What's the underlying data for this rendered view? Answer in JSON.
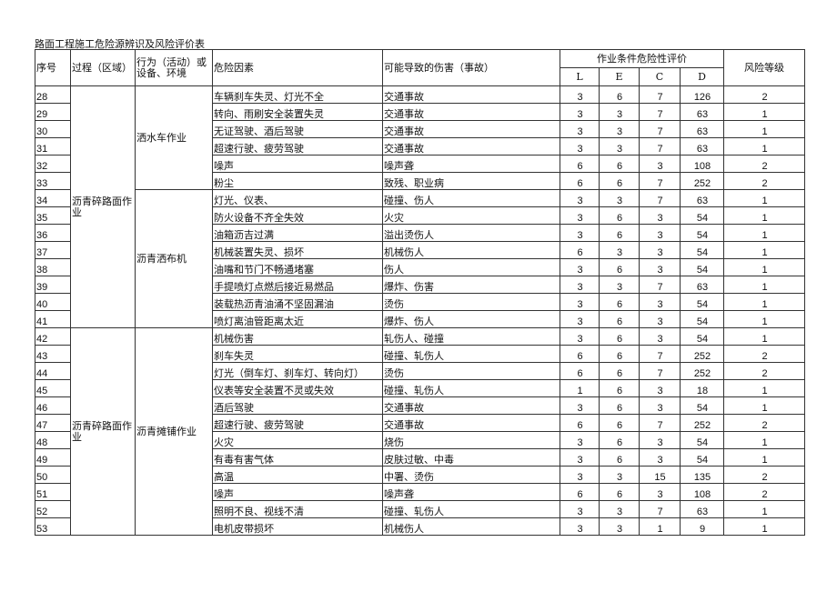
{
  "title": "路面工程施工危险源辨识及风险评价表",
  "headers": {
    "no": "序号",
    "process": "过程（区域）",
    "activity": "行为（活动）或设备、环境",
    "hazard": "危险因素",
    "harm": "可能导致的伤害（事故）",
    "evaluation": "作业条件危险性评价",
    "L": "L",
    "E": "E",
    "C": "C",
    "D": "D",
    "level": "风险等级"
  },
  "groups": [
    {
      "process": "沥青碎路面作业",
      "span": 14
    },
    {
      "process": "沥青碎路面作业",
      "span": 12
    }
  ],
  "activities": [
    {
      "label": "洒水车作业",
      "span": 6
    },
    {
      "label": "沥青洒布机",
      "span": 8
    },
    {
      "label": "沥青摊铺作业",
      "span": 12
    }
  ],
  "rows": [
    {
      "no": "28",
      "hazard": "车辆刹车失灵、灯光不全",
      "harm": "交通事故",
      "L": "3",
      "E": "6",
      "C": "7",
      "D": "126",
      "level": "2"
    },
    {
      "no": "29",
      "hazard": "转向、雨刷安全装置失灵",
      "harm": "交通事故",
      "L": "3",
      "E": "3",
      "C": "7",
      "D": "63",
      "level": "1"
    },
    {
      "no": "30",
      "hazard": "无证驾驶、酒后驾驶",
      "harm": "交通事故",
      "L": "3",
      "E": "3",
      "C": "7",
      "D": "63",
      "level": "1"
    },
    {
      "no": "31",
      "hazard": "超速行驶、疲劳驾驶",
      "harm": "交通事故",
      "L": "3",
      "E": "3",
      "C": "7",
      "D": "63",
      "level": "1"
    },
    {
      "no": "32",
      "hazard": "噪声",
      "harm": "噪声聋",
      "L": "6",
      "E": "6",
      "C": "3",
      "D": "108",
      "level": "2"
    },
    {
      "no": "33",
      "hazard": "粉尘",
      "harm": "致残、职业病",
      "L": "6",
      "E": "6",
      "C": "7",
      "D": "252",
      "level": "2"
    },
    {
      "no": "34",
      "hazard": "灯光、仪表、",
      "harm": "碰撞、伤人",
      "L": "3",
      "E": "3",
      "C": "7",
      "D": "63",
      "level": "1"
    },
    {
      "no": "35",
      "hazard": "防火设备不齐全失效",
      "harm": "火灾",
      "L": "3",
      "E": "6",
      "C": "3",
      "D": "54",
      "level": "1"
    },
    {
      "no": "36",
      "hazard": "油箱沥吉过满",
      "harm": "溢出烫伤人",
      "L": "3",
      "E": "6",
      "C": "3",
      "D": "54",
      "level": "1"
    },
    {
      "no": "37",
      "hazard": "机械装置失灵、损坏",
      "harm": "机械伤人",
      "L": "6",
      "E": "3",
      "C": "3",
      "D": "54",
      "level": "1"
    },
    {
      "no": "38",
      "hazard": "油嘴和节门不畅通堵塞",
      "harm": "伤人",
      "L": "3",
      "E": "6",
      "C": "3",
      "D": "54",
      "level": "1"
    },
    {
      "no": "39",
      "hazard": "手提喷灯点燃后接近易燃品",
      "harm": "爆炸、伤害",
      "L": "3",
      "E": "3",
      "C": "7",
      "D": "63",
      "level": "1"
    },
    {
      "no": "40",
      "hazard": "装载热沥青油涌不坚固漏油",
      "harm": "烫伤",
      "L": "3",
      "E": "6",
      "C": "3",
      "D": "54",
      "level": "1"
    },
    {
      "no": "41",
      "hazard": "喷灯离油管距离太近",
      "harm": "爆炸、伤人",
      "L": "3",
      "E": "6",
      "C": "3",
      "D": "54",
      "level": "1"
    },
    {
      "no": "42",
      "hazard": "机械伤害",
      "harm": "轧伤人、碰撞",
      "L": "3",
      "E": "6",
      "C": "3",
      "D": "54",
      "level": "1"
    },
    {
      "no": "43",
      "hazard": "刹车失灵",
      "harm": "碰撞、轧伤人",
      "L": "6",
      "E": "6",
      "C": "7",
      "D": "252",
      "level": "2"
    },
    {
      "no": "44",
      "hazard": "灯光（倒车灯、刹车灯、转向灯）",
      "harm": "烫伤",
      "L": "6",
      "E": "6",
      "C": "7",
      "D": "252",
      "level": "2"
    },
    {
      "no": "45",
      "hazard": "仪表等安全装置不灵或失效",
      "harm": "碰撞、轧伤人",
      "L": "1",
      "E": "6",
      "C": "3",
      "D": "18",
      "level": "1"
    },
    {
      "no": "46",
      "hazard": "酒后驾驶",
      "harm": "交通事故",
      "L": "3",
      "E": "6",
      "C": "3",
      "D": "54",
      "level": "1"
    },
    {
      "no": "47",
      "hazard": "超速行驶、疲劳驾驶",
      "harm": "交通事故",
      "L": "6",
      "E": "6",
      "C": "7",
      "D": "252",
      "level": "2"
    },
    {
      "no": "48",
      "hazard": "火灾",
      "harm": "烧伤",
      "L": "3",
      "E": "6",
      "C": "3",
      "D": "54",
      "level": "1"
    },
    {
      "no": "49",
      "hazard": "有毒有害气体",
      "harm": "皮肤过敏、中毒",
      "L": "3",
      "E": "6",
      "C": "3",
      "D": "54",
      "level": "1"
    },
    {
      "no": "50",
      "hazard": "高温",
      "harm": "中署、烫伤",
      "L": "3",
      "E": "3",
      "C": "15",
      "D": "135",
      "level": "2"
    },
    {
      "no": "51",
      "hazard": "噪声",
      "harm": "噪声聋",
      "L": "6",
      "E": "6",
      "C": "3",
      "D": "108",
      "level": "2"
    },
    {
      "no": "52",
      "hazard": "照明不良、视线不清",
      "harm": "碰撞、轧伤人",
      "L": "3",
      "E": "3",
      "C": "7",
      "D": "63",
      "level": "1"
    },
    {
      "no": "53",
      "hazard": "电机皮带损坏",
      "harm": "机械伤人",
      "L": "3",
      "E": "3",
      "C": "1",
      "D": "9",
      "level": "1"
    }
  ]
}
